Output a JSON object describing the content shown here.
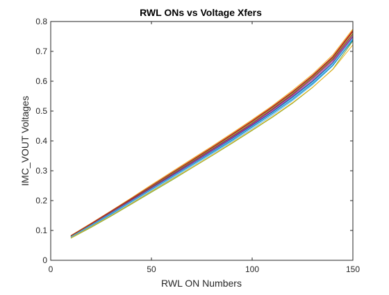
{
  "chart_data": {
    "type": "line",
    "title": "RWL ONs vs Voltage Xfers",
    "xlabel": "RWL ON Numbers",
    "ylabel": "IMC_VOUT Voltages",
    "xlim": [
      0,
      150
    ],
    "ylim": [
      0,
      0.8
    ],
    "xticks": [
      0,
      50,
      100,
      150
    ],
    "yticks": [
      0,
      0.1,
      0.2,
      0.3,
      0.4,
      0.5,
      0.6,
      0.7,
      0.8
    ],
    "xtick_labels": [
      "0",
      "50",
      "100",
      "150"
    ],
    "ytick_labels": [
      "0",
      "0.1",
      "0.2",
      "0.3",
      "0.4",
      "0.5",
      "0.6",
      "0.7",
      "0.8"
    ],
    "grid": false,
    "legend": "none",
    "x": [
      10,
      20,
      30,
      40,
      50,
      60,
      70,
      80,
      90,
      100,
      110,
      120,
      130,
      140,
      150
    ],
    "series": [
      {
        "color": "#0072BD",
        "values": [
          0.079,
          0.118,
          0.158,
          0.199,
          0.24,
          0.281,
          0.322,
          0.364,
          0.407,
          0.451,
          0.497,
          0.546,
          0.599,
          0.66,
          0.743
        ]
      },
      {
        "color": "#D95319",
        "values": [
          0.081,
          0.122,
          0.164,
          0.206,
          0.249,
          0.291,
          0.333,
          0.376,
          0.42,
          0.465,
          0.512,
          0.562,
          0.617,
          0.679,
          0.765
        ]
      },
      {
        "color": "#EDB120",
        "values": [
          0.083,
          0.124,
          0.166,
          0.209,
          0.253,
          0.296,
          0.339,
          0.382,
          0.426,
          0.471,
          0.518,
          0.569,
          0.624,
          0.688,
          0.775
        ]
      },
      {
        "color": "#7E2F8E",
        "values": [
          0.078,
          0.118,
          0.159,
          0.2,
          0.241,
          0.283,
          0.324,
          0.366,
          0.409,
          0.453,
          0.499,
          0.549,
          0.602,
          0.664,
          0.748
        ]
      },
      {
        "color": "#77AC30",
        "values": [
          0.074,
          0.11,
          0.148,
          0.188,
          0.228,
          0.268,
          0.309,
          0.35,
          0.392,
          0.435,
          0.479,
          0.526,
          0.579,
          0.64,
          0.735
        ]
      },
      {
        "color": "#4DBEEE",
        "values": [
          0.076,
          0.114,
          0.152,
          0.192,
          0.233,
          0.274,
          0.315,
          0.356,
          0.398,
          0.441,
          0.486,
          0.535,
          0.588,
          0.651,
          0.74
        ]
      },
      {
        "color": "#A2142F",
        "values": [
          0.08,
          0.12,
          0.161,
          0.203,
          0.245,
          0.287,
          0.329,
          0.371,
          0.414,
          0.459,
          0.506,
          0.556,
          0.611,
          0.673,
          0.757
        ]
      },
      {
        "color": "#0072BD",
        "values": [
          0.077,
          0.116,
          0.155,
          0.196,
          0.237,
          0.278,
          0.319,
          0.36,
          0.402,
          0.446,
          0.491,
          0.539,
          0.592,
          0.653,
          0.738
        ]
      },
      {
        "color": "#D95319",
        "values": [
          0.082,
          0.123,
          0.165,
          0.207,
          0.25,
          0.293,
          0.336,
          0.379,
          0.423,
          0.468,
          0.515,
          0.565,
          0.62,
          0.683,
          0.771
        ]
      },
      {
        "color": "#EDB120",
        "values": [
          0.075,
          0.112,
          0.15,
          0.19,
          0.231,
          0.271,
          0.311,
          0.352,
          0.394,
          0.437,
          0.481,
          0.528,
          0.58,
          0.639,
          0.722
        ]
      },
      {
        "color": "#7E2F8E",
        "values": [
          0.079,
          0.119,
          0.16,
          0.201,
          0.243,
          0.285,
          0.327,
          0.369,
          0.412,
          0.456,
          0.503,
          0.553,
          0.607,
          0.669,
          0.752
        ]
      },
      {
        "color": "#77AC30",
        "values": [
          0.081,
          0.121,
          0.163,
          0.205,
          0.247,
          0.289,
          0.331,
          0.374,
          0.417,
          0.462,
          0.509,
          0.559,
          0.614,
          0.676,
          0.76
        ]
      },
      {
        "color": "#4DBEEE",
        "values": [
          0.078,
          0.117,
          0.157,
          0.198,
          0.239,
          0.28,
          0.321,
          0.363,
          0.405,
          0.449,
          0.494,
          0.543,
          0.596,
          0.658,
          0.744
        ]
      },
      {
        "color": "#A2142F",
        "values": [
          0.082,
          0.122,
          0.164,
          0.206,
          0.249,
          0.292,
          0.334,
          0.377,
          0.421,
          0.466,
          0.513,
          0.563,
          0.618,
          0.681,
          0.768
        ]
      }
    ]
  }
}
